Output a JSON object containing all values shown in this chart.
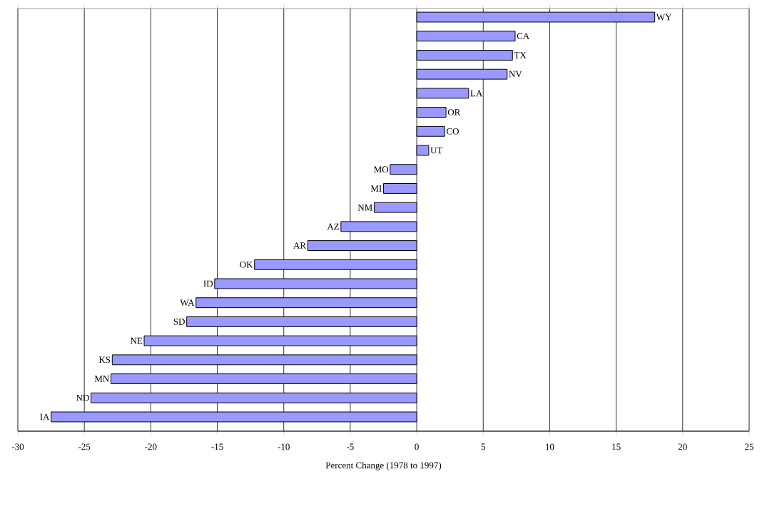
{
  "chart_data": {
    "type": "bar",
    "orientation": "horizontal",
    "xlabel": "Percent Change (1978 to 1997)",
    "categories": [
      "WY",
      "CA",
      "TX",
      "NV",
      "LA",
      "OR",
      "CO",
      "UT",
      "MO",
      "MI",
      "NM",
      "AZ",
      "AR",
      "OK",
      "ID",
      "WA",
      "SD",
      "NE",
      "KS",
      "MN",
      "ND",
      "IA"
    ],
    "values": [
      17.9,
      7.4,
      7.2,
      6.8,
      3.9,
      2.2,
      2.1,
      0.9,
      -2.0,
      -2.5,
      -3.2,
      -5.7,
      -8.2,
      -12.2,
      -15.2,
      -16.6,
      -17.3,
      -20.5,
      -22.9,
      -23.0,
      -24.5,
      -27.5
    ],
    "color": "#9999ff",
    "xlim": [
      -30,
      25
    ],
    "xticks": [
      -30,
      -25,
      -20,
      -15,
      -10,
      -5,
      0,
      5,
      10,
      15,
      20,
      25
    ],
    "grid": "x"
  }
}
